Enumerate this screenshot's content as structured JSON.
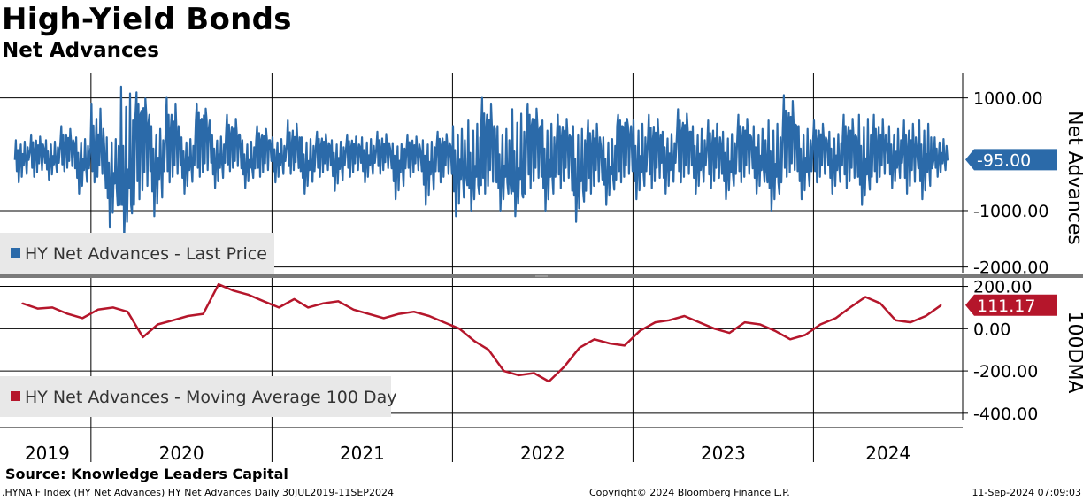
{
  "header": {
    "title": "High-Yield Bonds",
    "subtitle": "Net Advances"
  },
  "footer": {
    "source": "Source: Knowledge Leaders Capital",
    "ticker": ".HYNA F Index (HY Net Advances) HY Net Advances  Daily 30JUL2019-11SEP2024",
    "copyright": "Copyright© 2024 Bloomberg Finance L.P.",
    "timestamp": "11-Sep-2024 07:09:03"
  },
  "colors": {
    "series_top": "#2b6aa9",
    "series_bottom": "#b5162b",
    "legend_bg": "#e8e8e8",
    "divider": "#7a7a7a"
  },
  "chart_data": [
    {
      "type": "line",
      "panel": "top",
      "ylabel": "Net Advances",
      "ylim": [
        -2100,
        1450
      ],
      "yticks": [
        1000,
        -1000,
        -2000
      ],
      "ytick_labels": [
        "1000.00",
        "-1000.00",
        "-2000.00"
      ],
      "last_value": -95,
      "last_value_label": "-95.00",
      "grid": true,
      "legend_position": "bottom-left",
      "series": [
        {
          "name": "HY Net Advances - Last Price",
          "x": [
            "2019-08",
            "2019-09",
            "2019-10",
            "2019-11",
            "2019-12",
            "2020-01",
            "2020-02",
            "2020-03",
            "2020-04",
            "2020-05",
            "2020-06",
            "2020-07",
            "2020-08",
            "2020-09",
            "2020-10",
            "2020-11",
            "2020-12",
            "2021-01",
            "2021-02",
            "2021-03",
            "2021-04",
            "2021-05",
            "2021-06",
            "2021-07",
            "2021-08",
            "2021-09",
            "2021-10",
            "2021-11",
            "2021-12",
            "2022-01",
            "2022-02",
            "2022-03",
            "2022-04",
            "2022-05",
            "2022-06",
            "2022-07",
            "2022-08",
            "2022-09",
            "2022-10",
            "2022-11",
            "2022-12",
            "2023-01",
            "2023-02",
            "2023-03",
            "2023-04",
            "2023-05",
            "2023-06",
            "2023-07",
            "2023-08",
            "2023-09",
            "2023-10",
            "2023-11",
            "2023-12",
            "2024-01",
            "2024-02",
            "2024-03",
            "2024-04",
            "2024-05",
            "2024-06",
            "2024-07",
            "2024-08",
            "2024-09"
          ],
          "y_mid": [
            -100,
            80,
            -150,
            200,
            -250,
            120,
            -600,
            -900,
            700,
            -300,
            400,
            -200,
            600,
            -150,
            350,
            -250,
            250,
            -120,
            180,
            -300,
            150,
            -200,
            120,
            -150,
            100,
            -250,
            80,
            -300,
            150,
            -350,
            -550,
            450,
            -500,
            -700,
            500,
            -400,
            300,
            -650,
            150,
            -450,
            500,
            -300,
            250,
            -150,
            400,
            -200,
            150,
            -350,
            300,
            -250,
            -500,
            500,
            -300,
            250,
            -200,
            300,
            -400,
            200,
            -150,
            100,
            -250,
            -95
          ],
          "y_high": [
            250,
            350,
            250,
            500,
            300,
            900,
            300,
            1200,
            1100,
            500,
            1000,
            300,
            900,
            350,
            700,
            250,
            500,
            300,
            600,
            300,
            400,
            250,
            350,
            300,
            400,
            200,
            350,
            250,
            400,
            500,
            600,
            1000,
            500,
            800,
            900,
            600,
            700,
            500,
            600,
            300,
            700,
            600,
            700,
            400,
            800,
            500,
            600,
            400,
            700,
            500,
            600,
            1050,
            500,
            600,
            400,
            700,
            700,
            700,
            500,
            600,
            600,
            300
          ],
          "y_low": [
            -500,
            -400,
            -450,
            -300,
            -700,
            -500,
            -1300,
            -1500,
            -800,
            -1100,
            -500,
            -700,
            -400,
            -600,
            -300,
            -600,
            -400,
            -500,
            -350,
            -700,
            -400,
            -650,
            -400,
            -500,
            -350,
            -800,
            -400,
            -900,
            -500,
            -1100,
            -1000,
            -700,
            -1000,
            -1100,
            -600,
            -1000,
            -600,
            -1200,
            -700,
            -900,
            -500,
            -800,
            -600,
            -700,
            -500,
            -700,
            -600,
            -800,
            -500,
            -700,
            -1000,
            -400,
            -800,
            -500,
            -700,
            -600,
            -900,
            -500,
            -600,
            -700,
            -800,
            -400
          ]
        }
      ]
    },
    {
      "type": "line",
      "panel": "bottom",
      "ylabel": "100DMA",
      "ylim": [
        -430,
        240
      ],
      "yticks": [
        200,
        0,
        -200,
        -400
      ],
      "ytick_labels": [
        "200.00",
        "0.00",
        "-200.00",
        "-400.00"
      ],
      "last_value": 111.17,
      "last_value_label": "111.17",
      "grid": true,
      "legend_position": "bottom-left",
      "series": [
        {
          "name": "HY Net Advances - Moving Average 100 Day",
          "x": [
            "2019-08",
            "2019-09",
            "2019-10",
            "2019-11",
            "2019-12",
            "2020-01",
            "2020-02",
            "2020-03",
            "2020-04",
            "2020-05",
            "2020-06",
            "2020-07",
            "2020-08",
            "2020-09",
            "2020-10",
            "2020-11",
            "2020-12",
            "2021-01",
            "2021-02",
            "2021-03",
            "2021-04",
            "2021-05",
            "2021-06",
            "2021-07",
            "2021-08",
            "2021-09",
            "2021-10",
            "2021-11",
            "2021-12",
            "2022-01",
            "2022-02",
            "2022-03",
            "2022-04",
            "2022-05",
            "2022-06",
            "2022-07",
            "2022-08",
            "2022-09",
            "2022-10",
            "2022-11",
            "2022-12",
            "2023-01",
            "2023-02",
            "2023-03",
            "2023-04",
            "2023-05",
            "2023-06",
            "2023-07",
            "2023-08",
            "2023-09",
            "2023-10",
            "2023-11",
            "2023-12",
            "2024-01",
            "2024-02",
            "2024-03",
            "2024-04",
            "2024-05",
            "2024-06",
            "2024-07",
            "2024-08",
            "2024-09"
          ],
          "y": [
            120,
            95,
            100,
            70,
            50,
            90,
            100,
            80,
            -40,
            20,
            40,
            60,
            70,
            210,
            180,
            160,
            130,
            100,
            140,
            100,
            120,
            130,
            90,
            70,
            50,
            70,
            80,
            60,
            30,
            0,
            -60,
            -100,
            -200,
            -220,
            -210,
            -250,
            -180,
            -90,
            -50,
            -70,
            -80,
            -10,
            30,
            40,
            60,
            30,
            0,
            -20,
            30,
            20,
            -10,
            -50,
            -30,
            20,
            50,
            100,
            150,
            120,
            40,
            30,
            60,
            111.17
          ]
        }
      ]
    }
  ],
  "axis": {
    "year_labels": [
      "2019",
      "2020",
      "2021",
      "2022",
      "2023",
      "2024"
    ]
  }
}
